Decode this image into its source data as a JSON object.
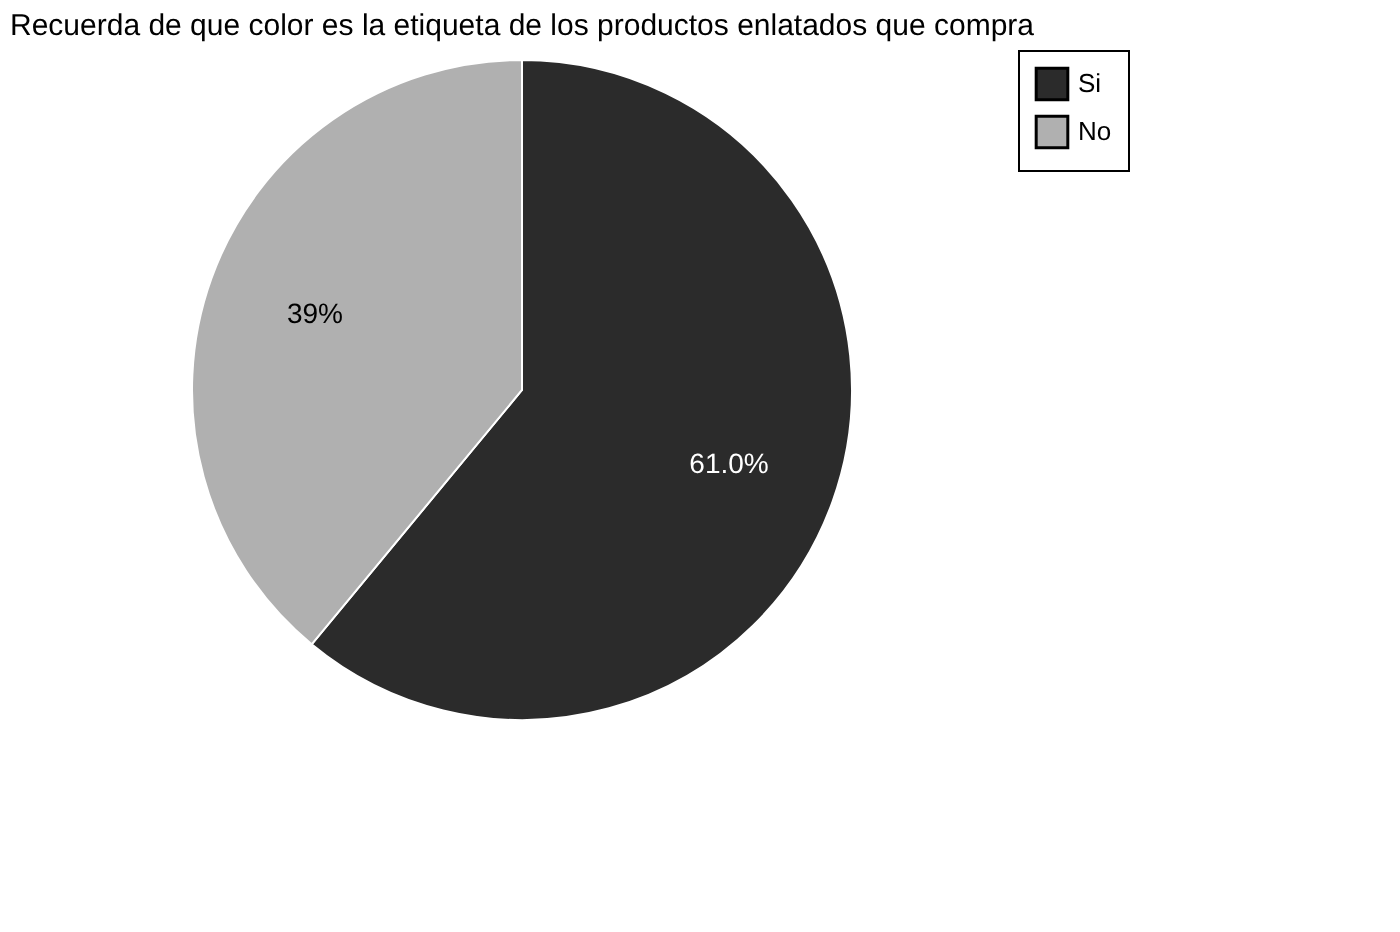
{
  "chart_data": {
    "type": "pie",
    "title": "Recuerda de que color es la etiqueta de los productos enlatados que compra",
    "categories": [
      "Si",
      "No"
    ],
    "values": [
      61.0,
      39
    ],
    "colors": [
      "#2b2b2b",
      "#b0b0b0"
    ],
    "value_labels": [
      "61.0%",
      "39%"
    ],
    "legend": "right"
  }
}
